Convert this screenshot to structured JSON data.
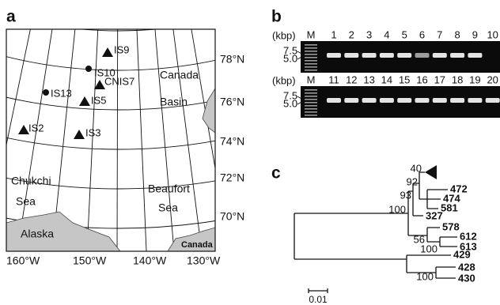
{
  "panels": {
    "a": {
      "label": "a",
      "stations": [
        "IS9",
        "IS10",
        "CNIS7",
        "IS13",
        "IS5",
        "IS2",
        "IS3"
      ],
      "regions": [
        [
          "Canada",
          "Basin"
        ],
        [
          "Chukchi",
          "Sea"
        ],
        [
          "Beaufort",
          "Sea"
        ],
        [
          "Alaska"
        ],
        [
          "Canada"
        ]
      ],
      "latitudes": [
        "78°N",
        "76°N",
        "74°N",
        "72°N",
        "70°N"
      ],
      "longitudes": [
        "160°W",
        "150°W",
        "140°W",
        "130°W"
      ]
    },
    "b": {
      "label": "b",
      "gels": [
        {
          "unit": "(kbp)",
          "sizes": [
            "7.5",
            "5.0"
          ],
          "lanes": [
            "M",
            "1",
            "2",
            "3",
            "4",
            "5",
            "6",
            "7",
            "8",
            "9",
            "10"
          ]
        },
        {
          "unit": "(kbp)",
          "sizes": [
            "7.5",
            "5.0"
          ],
          "lanes": [
            "M",
            "11",
            "12",
            "13",
            "14",
            "15",
            "16",
            "17",
            "18",
            "19",
            "20"
          ]
        }
      ]
    },
    "c": {
      "label": "c",
      "leaves": [
        "472",
        "474",
        "581",
        "327",
        "578",
        "612",
        "613",
        "429",
        "428",
        "430"
      ],
      "support": [
        "40",
        "92",
        "93",
        "100",
        "56",
        "100",
        "100"
      ],
      "scale": "0.01"
    }
  }
}
